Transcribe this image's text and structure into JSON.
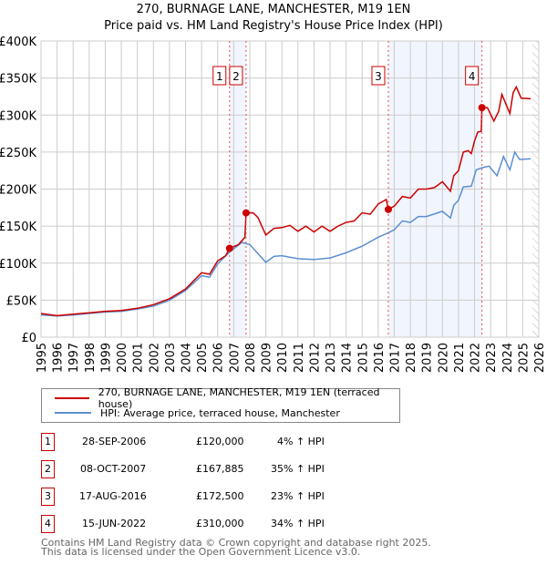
{
  "title_line1": "270, BURNAGE LANE, MANCHESTER, M19 1EN",
  "title_line2": "Price paid vs. HM Land Registry's House Price Index (HPI)",
  "chart_data": {
    "type": "line",
    "title": "Price paid vs. HM Land Registry's House Price Index (HPI)",
    "xlim": [
      1995,
      2026
    ],
    "ylim": [
      0,
      400000
    ],
    "yticks": [
      0,
      50000,
      100000,
      150000,
      200000,
      250000,
      300000,
      350000,
      400000
    ],
    "ytick_labels": [
      "£0",
      "£50K",
      "£100K",
      "£150K",
      "£200K",
      "£250K",
      "£300K",
      "£350K",
      "£400K"
    ],
    "xticks": [
      1995,
      1996,
      1997,
      1998,
      1999,
      2000,
      2001,
      2002,
      2003,
      2004,
      2005,
      2006,
      2007,
      2008,
      2009,
      2010,
      2011,
      2012,
      2013,
      2014,
      2015,
      2016,
      2017,
      2018,
      2019,
      2020,
      2021,
      2022,
      2023,
      2024,
      2025,
      2026
    ],
    "grid": true,
    "shaded_ranges": [
      [
        2006.74,
        2007.77
      ],
      [
        2016.63,
        2022.46
      ]
    ],
    "forecast_hatch_from": 2025.6,
    "series": [
      {
        "name": "270, BURNAGE LANE, MANCHESTER, M19 1EN (terraced house)",
        "color": "#cc0000",
        "x": [
          1995,
          1996,
          1997,
          1998,
          1999,
          2000,
          2001,
          2002,
          2003,
          2004,
          2005,
          2005.5,
          2006,
          2006.5,
          2006.74,
          2007.3,
          2007.7,
          2007.77,
          2008.2,
          2008.5,
          2009,
          2009.5,
          2010,
          2010.5,
          2011,
          2011.5,
          2012,
          2012.5,
          2013,
          2013.5,
          2014,
          2014.5,
          2015,
          2015.5,
          2016,
          2016.5,
          2016.63,
          2017,
          2017.5,
          2018,
          2018.5,
          2019,
          2019.5,
          2020,
          2020.5,
          2020.7,
          2021,
          2021.3,
          2021.6,
          2021.8,
          2022,
          2022.2,
          2022.42,
          2022.46,
          2022.8,
          2023.2,
          2023.5,
          2023.7,
          2024.2,
          2024.4,
          2024.6,
          2024.9,
          2025.5
        ],
        "y": [
          32000,
          29000,
          31000,
          33000,
          35000,
          36000,
          39000,
          44000,
          52000,
          65000,
          87000,
          85000,
          103000,
          110000,
          120000,
          125000,
          135000,
          167885,
          168000,
          162000,
          138000,
          147000,
          148000,
          151000,
          143000,
          150000,
          142000,
          150000,
          143000,
          150000,
          155000,
          157000,
          168000,
          166000,
          180000,
          186000,
          172500,
          177000,
          190000,
          188000,
          200000,
          200000,
          202000,
          210000,
          197000,
          218000,
          225000,
          250000,
          252000,
          248000,
          265000,
          277000,
          278000,
          310000,
          310000,
          292000,
          305000,
          328000,
          302000,
          330000,
          338000,
          323000,
          322000
        ]
      },
      {
        "name": "HPI: Average price, terraced house, Manchester",
        "color": "#5b8fd0",
        "x": [
          1995,
          1996,
          1997,
          1998,
          1999,
          2000,
          2001,
          2002,
          2003,
          2004,
          2005,
          2005.5,
          2006,
          2006.74,
          2007.5,
          2008,
          2009,
          2009.5,
          2010,
          2011,
          2012,
          2013,
          2014,
          2015,
          2016,
          2016.63,
          2017,
          2017.5,
          2018,
          2018.5,
          2019,
          2020,
          2020.5,
          2020.7,
          2021,
          2021.3,
          2021.8,
          2022.1,
          2022.5,
          2022.9,
          2023.4,
          2023.8,
          2024.2,
          2024.5,
          2024.8,
          2025.5
        ],
        "y": [
          30000,
          28500,
          30000,
          32000,
          34000,
          35000,
          38000,
          42000,
          50000,
          63000,
          83000,
          81000,
          99000,
          115000,
          128000,
          125000,
          101000,
          109000,
          110000,
          106000,
          105000,
          107000,
          114000,
          123000,
          135000,
          141000,
          145000,
          157000,
          155000,
          163000,
          163000,
          170000,
          161000,
          178000,
          185000,
          203000,
          204000,
          226000,
          229000,
          231000,
          218000,
          244000,
          226000,
          250000,
          240000,
          241000
        ]
      }
    ],
    "sales": [
      {
        "label": "1",
        "x": 2006.74,
        "y": 120000
      },
      {
        "label": "2",
        "x": 2007.77,
        "y": 167885
      },
      {
        "label": "3",
        "x": 2016.63,
        "y": 172500
      },
      {
        "label": "4",
        "x": 2022.46,
        "y": 310000
      }
    ]
  },
  "legend": {
    "property": "270, BURNAGE LANE, MANCHESTER, M19 1EN (terraced house)",
    "hpi": "HPI: Average price, terraced house, Manchester"
  },
  "transactions": [
    {
      "num": "1",
      "date": "28-SEP-2006",
      "price": "£120,000",
      "hpi": "4% ↑ HPI"
    },
    {
      "num": "2",
      "date": "08-OCT-2007",
      "price": "£167,885",
      "hpi": "35% ↑ HPI"
    },
    {
      "num": "3",
      "date": "17-AUG-2016",
      "price": "£172,500",
      "hpi": "23% ↑ HPI"
    },
    {
      "num": "4",
      "date": "15-JUN-2022",
      "price": "£310,000",
      "hpi": "34% ↑ HPI"
    }
  ],
  "footer": {
    "line1": "Contains HM Land Registry data © Crown copyright and database right 2025.",
    "line2": "This data is licensed under the Open Government Licence v3.0."
  }
}
